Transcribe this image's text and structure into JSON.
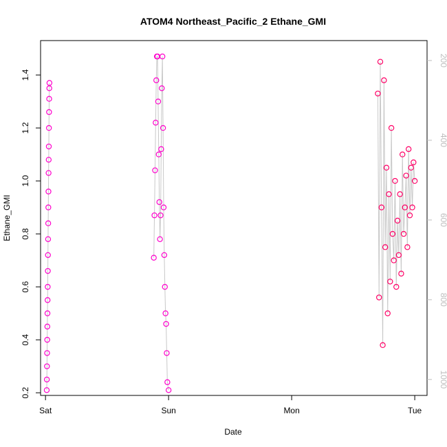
{
  "chart_data": {
    "type": "scatter",
    "title": "ATOM4 Northeast_Pacific_2 Ethane_GMI",
    "xlabel": "Date",
    "ylabel": "Ethane_GMI",
    "x_ticks": [
      {
        "label": "Sat",
        "value": 0
      },
      {
        "label": "Sun",
        "value": 1
      },
      {
        "label": "Mon",
        "value": 2
      },
      {
        "label": "Tue",
        "value": 3
      }
    ],
    "xlim": [
      -0.04,
      3.1
    ],
    "y_ticks": [
      0.2,
      0.4,
      0.6,
      0.8,
      1.0,
      1.2,
      1.4
    ],
    "ylim": [
      0.19,
      1.53
    ],
    "y2_ticks": [
      200,
      400,
      600,
      800,
      1000
    ],
    "y2lim": [
      1040,
      150
    ],
    "y2_color": "#bdbdbd",
    "grid": false,
    "legend": "none",
    "series": [
      {
        "color": "#ff00cc",
        "x": [
          0.01,
          0.011,
          0.012,
          0.013,
          0.014,
          0.015,
          0.016,
          0.017,
          0.018,
          0.019,
          0.02,
          0.021,
          0.022,
          0.023,
          0.024,
          0.025,
          0.026,
          0.027,
          0.028,
          0.029,
          0.03,
          0.031,
          0.032
        ],
        "y": [
          0.21,
          0.25,
          0.3,
          0.35,
          0.4,
          0.45,
          0.5,
          0.55,
          0.6,
          0.66,
          0.72,
          0.78,
          0.84,
          0.9,
          0.96,
          1.03,
          1.08,
          1.13,
          1.2,
          1.26,
          1.31,
          1.35,
          1.37
        ]
      },
      {
        "color": "#ff00cc",
        "x": [
          0.88,
          0.885,
          0.89,
          0.895,
          0.9,
          0.905,
          0.91,
          0.915,
          0.92,
          0.925,
          0.93,
          0.935,
          0.94,
          0.945,
          0.95,
          0.955,
          0.96,
          0.965,
          0.97,
          0.975,
          0.98,
          0.985,
          0.99,
          1.0
        ],
        "y": [
          0.71,
          0.87,
          1.04,
          1.22,
          1.38,
          1.47,
          1.47,
          1.3,
          1.1,
          0.92,
          0.78,
          0.87,
          1.12,
          1.35,
          1.47,
          1.2,
          0.9,
          0.72,
          0.6,
          0.5,
          0.46,
          0.35,
          0.24,
          0.21
        ]
      },
      {
        "color": "#ff0066",
        "x": [
          2.7,
          2.71,
          2.72,
          2.73,
          2.74,
          2.75,
          2.76,
          2.77,
          2.78,
          2.79,
          2.8,
          2.81,
          2.82,
          2.83,
          2.84,
          2.85,
          2.86,
          2.87,
          2.88,
          2.89,
          2.9,
          2.91,
          2.92,
          2.93,
          2.94,
          2.95,
          2.96,
          2.97,
          2.98,
          2.99,
          3.0
        ],
        "y": [
          1.33,
          0.56,
          1.45,
          0.9,
          0.38,
          1.38,
          0.75,
          1.05,
          0.5,
          0.95,
          0.62,
          1.2,
          0.8,
          0.7,
          1.0,
          0.6,
          0.85,
          0.72,
          0.95,
          0.65,
          1.1,
          0.8,
          0.9,
          1.02,
          0.75,
          1.12,
          0.87,
          1.05,
          0.9,
          1.07,
          1.0
        ]
      }
    ]
  }
}
